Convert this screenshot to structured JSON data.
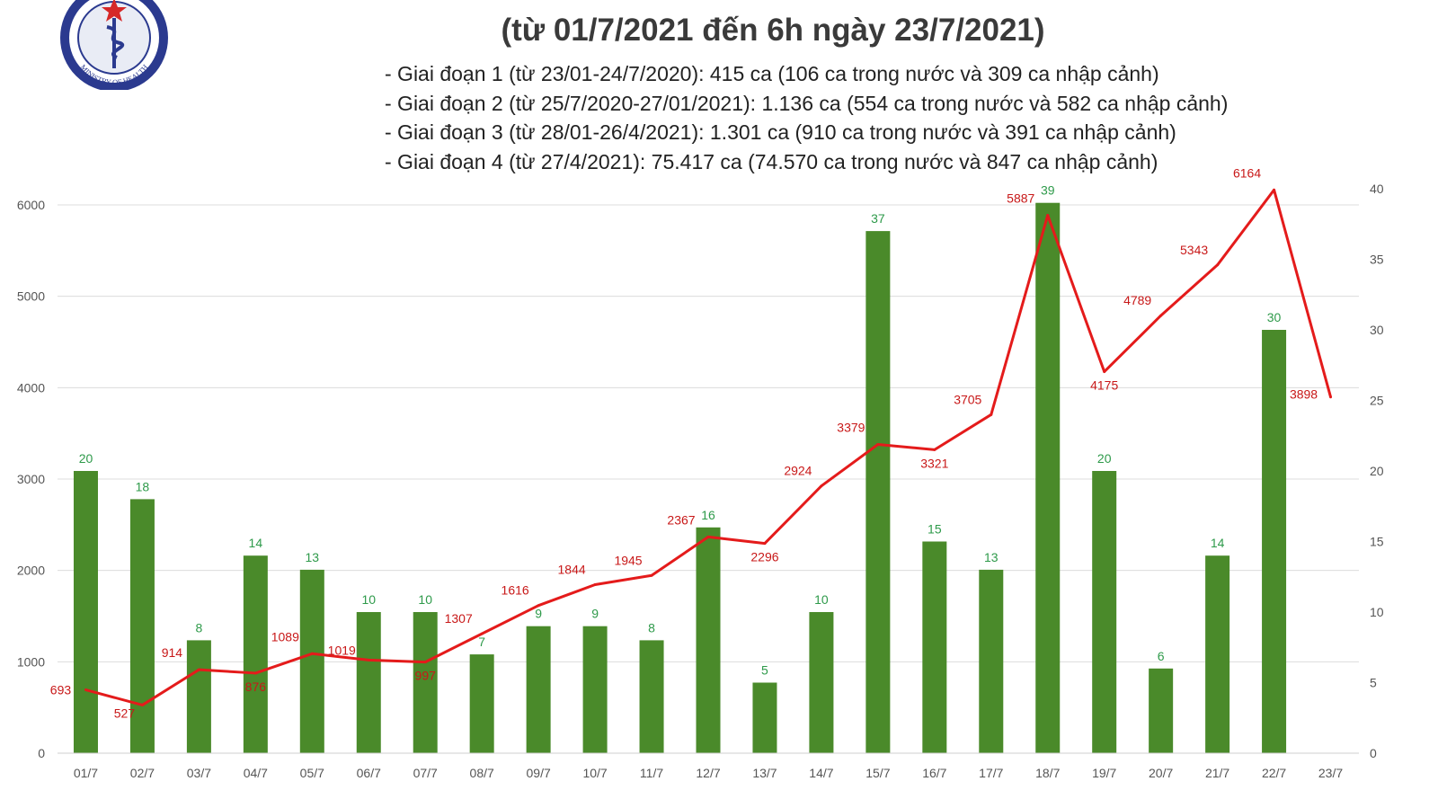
{
  "title": "(từ 01/7/2021 đến 6h ngày 23/7/2021)",
  "stages": [
    "- Giai đoạn 1 (từ 23/01-24/7/2020): 415 ca (106 ca trong nước và 309 ca nhập cảnh)",
    "- Giai đoạn 2 (từ 25/7/2020-27/01/2021): 1.136 ca (554 ca trong nước và 582 ca nhập cảnh)",
    "- Giai đoạn 3 (từ 28/01-26/4/2021): 1.301 ca (910 ca trong nước và 391 ca nhập cảnh)",
    "- Giai đoạn 4 (từ 27/4/2021): 75.417 ca (74.570 ca trong nước và 847 ca nhập cảnh)"
  ],
  "logo_text": "MINISTRY OF HEALTH",
  "chart_data": {
    "type": "bar",
    "categories": [
      "01/7",
      "02/7",
      "03/7",
      "04/7",
      "05/7",
      "06/7",
      "07/7",
      "08/7",
      "09/7",
      "10/7",
      "11/7",
      "12/7",
      "13/7",
      "14/7",
      "15/7",
      "16/7",
      "17/7",
      "18/7",
      "19/7",
      "20/7",
      "21/7",
      "22/7",
      "23/7"
    ],
    "series": [
      {
        "type": "bar",
        "axis": "right",
        "color": "#4a8a2a",
        "label_color": "#2e9a4a",
        "values": [
          20,
          18,
          8,
          14,
          13,
          10,
          10,
          7,
          9,
          9,
          8,
          16,
          5,
          10,
          37,
          15,
          13,
          39,
          20,
          6,
          14,
          30,
          null
        ]
      },
      {
        "type": "line",
        "axis": "left",
        "color": "#e41b1b",
        "label_color": "#c81818",
        "values": [
          693,
          527,
          914,
          876,
          1089,
          1019,
          997,
          1307,
          1616,
          1844,
          1945,
          2367,
          2296,
          2924,
          3379,
          3321,
          3705,
          5887,
          4175,
          4789,
          5343,
          6164,
          3898
        ]
      }
    ],
    "ylim_left": [
      0,
      6000
    ],
    "yticks_left": [
      0,
      1000,
      2000,
      3000,
      4000,
      5000,
      6000
    ],
    "ylim_right": [
      0,
      40
    ],
    "yticks_right": [
      0,
      5,
      10,
      15,
      20,
      25,
      30,
      35,
      40
    ],
    "grid": true,
    "legend": "none"
  }
}
